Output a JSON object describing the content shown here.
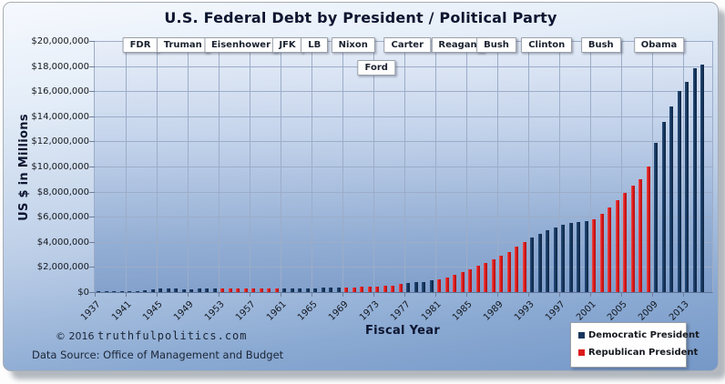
{
  "chart": {
    "title": "U.S. Federal Debt by President / Political Party",
    "ylabel": "US $ in Millions",
    "xlabel": "Fiscal Year"
  },
  "footer": {
    "copyright_prefix": "© 2016 ",
    "site": "truthfulpolitics.com",
    "data_source": "Data Source:  Office of Management and Budget"
  },
  "legend": {
    "items": [
      {
        "label": "Democratic President",
        "color": "#16365c"
      },
      {
        "label": "Republican President",
        "color": "#dc1a1a"
      }
    ]
  },
  "chart_data": {
    "type": "bar",
    "title": "U.S. Federal Debt by President / Political Party",
    "xlabel": "Fiscal Year",
    "ylabel": "US $ in Millions",
    "y_max": 20000000,
    "y_tick_labels": [
      "$20,000,000",
      "$18,000,000",
      "$16,000,000",
      "$14,000,000",
      "$12,000,000",
      "$10,000,000",
      "$8,000,000",
      "$6,000,000",
      "$4,000,000",
      "$2,000,000",
      "$0"
    ],
    "x_tick_years": [
      1937,
      1941,
      1945,
      1949,
      1953,
      1957,
      1961,
      1965,
      1969,
      1973,
      1977,
      1981,
      1985,
      1989,
      1993,
      1997,
      2001,
      2005,
      2009,
      2013
    ],
    "start_year": 1937,
    "end_year": 2015,
    "grid": true,
    "legend_position": "bottom-right",
    "party_colors": {
      "D": "#16365c",
      "R": "#dc1a1a"
    },
    "values": [
      36425,
      37165,
      40440,
      42968,
      48961,
      72422,
      136696,
      201003,
      260123,
      270991,
      257149,
      252031,
      252610,
      256853,
      255288,
      259097,
      265963,
      270812,
      274366,
      272693,
      272252,
      279666,
      287465,
      290525,
      292648,
      302928,
      310324,
      316059,
      322318,
      328498,
      340445,
      368685,
      365769,
      380921,
      408176,
      435936,
      466291,
      483893,
      541925,
      628970,
      706398,
      776602,
      829467,
      909041,
      994828,
      1137315,
      1371660,
      1564586,
      1817423,
      2120501,
      2345956,
      2601104,
      2867800,
      3206290,
      3598178,
      4001787,
      4351044,
      4643307,
      4920586,
      5181465,
      5369206,
      5478189,
      5605523,
      5628700,
      5769881,
      6198401,
      6760014,
      7354657,
      7905300,
      8451350,
      8950744,
      9986082,
      11875851,
      13528807,
      14764222,
      16050921,
      16719434,
      17794483,
      18120106
    ],
    "parties": [
      "D",
      "D",
      "D",
      "D",
      "D",
      "D",
      "D",
      "D",
      "D",
      "D",
      "D",
      "D",
      "D",
      "D",
      "D",
      "D",
      "R",
      "R",
      "R",
      "R",
      "R",
      "R",
      "R",
      "R",
      "D",
      "D",
      "D",
      "D",
      "D",
      "D",
      "D",
      "D",
      "R",
      "R",
      "R",
      "R",
      "R",
      "R",
      "R",
      "R",
      "D",
      "D",
      "D",
      "D",
      "R",
      "R",
      "R",
      "R",
      "R",
      "R",
      "R",
      "R",
      "R",
      "R",
      "R",
      "R",
      "D",
      "D",
      "D",
      "D",
      "D",
      "D",
      "D",
      "D",
      "R",
      "R",
      "R",
      "R",
      "R",
      "R",
      "R",
      "R",
      "D",
      "D",
      "D",
      "D",
      "D",
      "D",
      "D"
    ],
    "presidents": [
      {
        "label": "FDR",
        "center_year": 1943,
        "row": 1
      },
      {
        "label": "Truman",
        "center_year": 1948.5,
        "row": 1
      },
      {
        "label": "Eisenhower",
        "center_year": 1956,
        "row": 1
      },
      {
        "label": "JFK",
        "center_year": 1962,
        "row": 1
      },
      {
        "label": "LB",
        "center_year": 1965.5,
        "row": 1
      },
      {
        "label": "Nixon",
        "center_year": 1970.5,
        "row": 1
      },
      {
        "label": "Ford",
        "center_year": 1973.5,
        "row": 2
      },
      {
        "label": "Carter",
        "center_year": 1977.5,
        "row": 1
      },
      {
        "label": "Reagan",
        "center_year": 1984,
        "row": 1
      },
      {
        "label": "Bush",
        "center_year": 1989,
        "row": 1
      },
      {
        "label": "Clinton",
        "center_year": 1995.5,
        "row": 1
      },
      {
        "label": "Bush",
        "center_year": 2002.5,
        "row": 1
      },
      {
        "label": "Obama",
        "center_year": 2010,
        "row": 1
      }
    ]
  }
}
